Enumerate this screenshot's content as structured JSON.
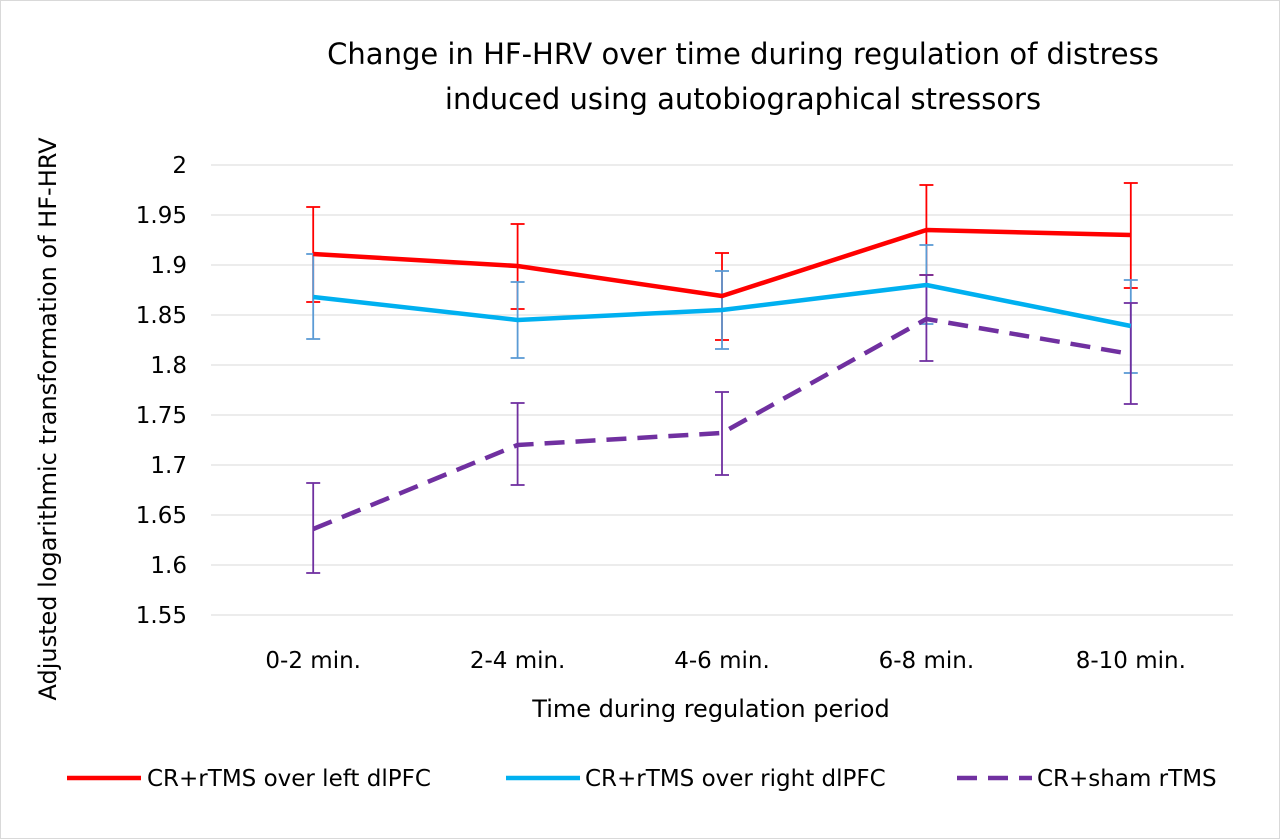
{
  "chart_data": {
    "type": "line",
    "title_lines": [
      "Change in HF-HRV over time during regulation of  distress",
      "induced using autobiographical stressors"
    ],
    "xlabel": "Time during regulation period",
    "ylabel": "Adjusted logarithmic transformation of HF-HRV",
    "categories": [
      "0-2 min.",
      "2-4 min.",
      "4-6 min.",
      "6-8 min.",
      "8-10 min."
    ],
    "ylim": [
      1.55,
      2
    ],
    "ytick_labels": [
      "2",
      "1.95",
      "1.9",
      "1.85",
      "1.8",
      "1.75",
      "1.7",
      "1.65",
      "1.6",
      "1.55"
    ],
    "grid": "horizontal",
    "legend_position": "bottom",
    "series": [
      {
        "name": "CR+rTMS over left dlPFC",
        "color": "#ff0000",
        "dash": "solid",
        "values": [
          1.911,
          1.899,
          1.869,
          1.935,
          1.93
        ],
        "err_low": [
          1.863,
          1.856,
          1.825,
          1.89,
          1.877
        ],
        "err_high": [
          1.958,
          1.941,
          1.912,
          1.98,
          1.982
        ]
      },
      {
        "name": "CR+rTMS over right dlPFC",
        "color": "#00b0f0",
        "err_color": "#5b9bd5",
        "dash": "solid",
        "values": [
          1.868,
          1.845,
          1.855,
          1.88,
          1.839
        ],
        "err_low": [
          1.826,
          1.807,
          1.816,
          1.841,
          1.792
        ],
        "err_high": [
          1.911,
          1.883,
          1.894,
          1.92,
          1.885
        ]
      },
      {
        "name": "CR+sham rTMS",
        "color": "#7030a0",
        "dash": "dashed",
        "values": [
          1.636,
          1.72,
          1.732,
          1.846,
          1.811
        ],
        "err_low": [
          1.592,
          1.68,
          1.69,
          1.804,
          1.761
        ],
        "err_high": [
          1.682,
          1.762,
          1.773,
          1.89,
          1.862
        ]
      }
    ]
  }
}
